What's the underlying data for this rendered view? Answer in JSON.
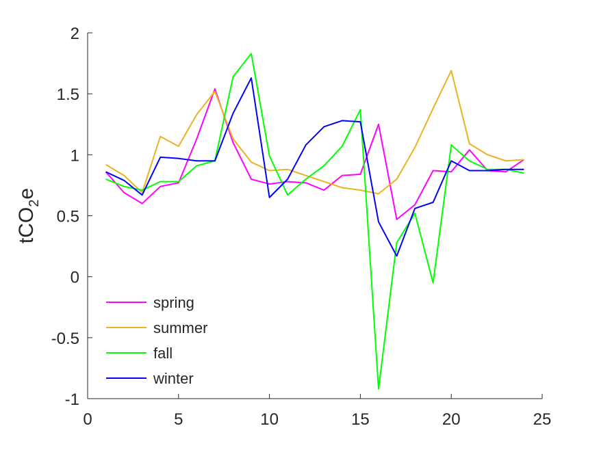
{
  "chart_data": {
    "type": "line",
    "title": "",
    "xlabel": "",
    "ylabel": "tCO2e",
    "ylabel_parts": {
      "pre": "tCO",
      "sub": "2",
      "post": "e"
    },
    "xlim": [
      0,
      25
    ],
    "ylim": [
      -1,
      2
    ],
    "xticks": [
      0,
      5,
      10,
      15,
      20,
      25
    ],
    "xtick_labels": [
      "0",
      "5",
      "10",
      "15",
      "20",
      "25"
    ],
    "yticks": [
      -1,
      -0.5,
      0,
      0.5,
      1,
      1.5,
      2
    ],
    "ytick_labels": [
      "-1",
      "-0.5",
      "0",
      "0.5",
      "1",
      "1.5",
      "2"
    ],
    "grid": false,
    "legend_position": "bottom-left",
    "x": [
      1,
      2,
      3,
      4,
      5,
      6,
      7,
      8,
      9,
      10,
      11,
      12,
      13,
      14,
      15,
      16,
      17,
      18,
      19,
      20,
      21,
      22,
      23,
      24
    ],
    "series": [
      {
        "name": "spring",
        "color": "#ff00ff",
        "values": [
          0.86,
          0.69,
          0.6,
          0.74,
          0.77,
          1.13,
          1.54,
          1.1,
          0.8,
          0.76,
          0.78,
          0.77,
          0.71,
          0.83,
          0.84,
          1.25,
          0.47,
          0.59,
          0.87,
          0.86,
          1.04,
          0.87,
          0.86,
          0.96
        ]
      },
      {
        "name": "summer",
        "color": "#edb120",
        "values": [
          0.92,
          0.83,
          0.69,
          1.15,
          1.07,
          1.33,
          1.52,
          1.13,
          0.94,
          0.87,
          0.88,
          0.83,
          0.78,
          0.73,
          0.71,
          0.68,
          0.8,
          1.06,
          1.38,
          1.69,
          1.09,
          1.0,
          0.95,
          0.96
        ]
      },
      {
        "name": "fall",
        "color": "#00ff00",
        "values": [
          0.8,
          0.74,
          0.71,
          0.78,
          0.78,
          0.91,
          0.95,
          1.64,
          1.83,
          0.99,
          0.67,
          0.8,
          0.91,
          1.07,
          1.37,
          -0.92,
          0.28,
          0.52,
          -0.05,
          1.08,
          0.95,
          0.88,
          0.88,
          0.85
        ]
      },
      {
        "name": "winter",
        "color": "#0000ff",
        "values": [
          0.86,
          0.79,
          0.67,
          0.98,
          0.97,
          0.95,
          0.95,
          1.34,
          1.63,
          0.65,
          0.8,
          1.08,
          1.23,
          1.28,
          1.27,
          0.45,
          0.17,
          0.56,
          0.61,
          0.95,
          0.87,
          0.87,
          0.88,
          0.88
        ]
      }
    ]
  }
}
